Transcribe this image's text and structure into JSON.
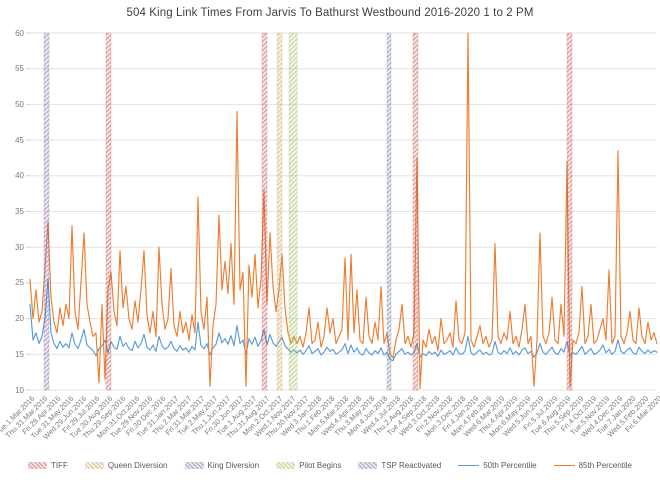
{
  "chart_data": {
    "type": "line",
    "title": "504 King Link Times From Jarvis To Bathurst Westbound 2016-2020 1 to 2 PM",
    "xlabel": "",
    "ylabel": "",
    "ylim": [
      10,
      60
    ],
    "y_ticks": [
      10,
      15,
      20,
      25,
      30,
      35,
      40,
      45,
      50,
      55,
      60
    ],
    "grid": true,
    "legend_position": "bottom",
    "categories": [
      "Tue.1.Mar.2016",
      "Thu.31.Mar.2016",
      "Fri.29.Apr.2016",
      "Tue.31.May.2016",
      "Wed.29.Jun.2016",
      "Fri.29.Jul.2016",
      "Tue.30.Aug.2016",
      "Thu.29.Sep.2016",
      "Mon.31.Oct.2016",
      "Tue.29.Nov.2016",
      "Fri.30.Dec.2016",
      "Tue.31.Jan.2017",
      "Thu.2.Mar.2017",
      "Fri.31.Mar.2017",
      "Tue.2.May.2017",
      "Thu.1.Jun.2017",
      "Fri.30.Jun.2017",
      "Tue.1.Aug.2017",
      "Thu.31.Aug.2017",
      "Mon.2.Oct.2017",
      "Wed.1.Nov.2017",
      "Thu.30.Nov.2017",
      "Wed.3.Jan.2018",
      "Thu.1.Feb.2018",
      "Mon.5.Mar.2018",
      "Wed.4.Apr.2018",
      "Thu.3.May.2018",
      "Mon.4.Jun.2018",
      "Wed.4.Jul.2018",
      "Thu.2.Aug.2018",
      "Tue.4.Sep.2018",
      "Wed.3.Oct.2018",
      "Fri.2.Nov.2018",
      "Mon.3.Dec.2018",
      "Fri.4.Jan.2019",
      "Mon.4.Feb.2019",
      "Wed.6.Mar.2019",
      "Thu.4.Apr.2019",
      "Mon.6.May.2019",
      "Wed.5.Jun.2019",
      "Fri.5.Jul.2019",
      "Tue.6.Aug.2019",
      "Thu.5.Sep.2019",
      "Fri.4.Oct.2019",
      "Tue.5.Nov.2019",
      "Wed.4.Dec.2019",
      "Tue.7.Jan.2020",
      "Wed.5.Feb.2020",
      "Fri.6.Mar.2020"
    ],
    "series": [
      {
        "name": "50th Percentile",
        "color": "#5B9BD5",
        "values": [
          22.0,
          17.0,
          18.0,
          16.5,
          17.5,
          20.0,
          25.5,
          18.0,
          16.5,
          15.8,
          16.8,
          16.0,
          16.5,
          15.9,
          18.0,
          16.4,
          15.8,
          17.0,
          18.5,
          16.3,
          15.9,
          15.5,
          14.8,
          15.8,
          16.2,
          17.0,
          15.2,
          16.8,
          16.0,
          15.7,
          17.5,
          16.1,
          16.6,
          15.8,
          15.5,
          16.8,
          15.9,
          16.5,
          17.8,
          16.0,
          15.6,
          16.3,
          15.4,
          17.5,
          16.2,
          15.7,
          16.0,
          16.8,
          15.8,
          15.4,
          16.2,
          15.6,
          15.9,
          15.3,
          16.1,
          15.6,
          19.5,
          16.2,
          15.8,
          16.5,
          14.9,
          15.9,
          16.4,
          18.0,
          16.6,
          17.2,
          16.4,
          17.6,
          16.2,
          19.0,
          16.5,
          17.0,
          15.0,
          17.2,
          16.4,
          17.4,
          16.1,
          16.9,
          18.5,
          16.3,
          17.8,
          16.6,
          16.1,
          16.8,
          17.4,
          16.2,
          15.7,
          15.3,
          15.6,
          15.2,
          15.6,
          15.0,
          15.5,
          16.2,
          15.1,
          15.4,
          15.8,
          14.9,
          15.3,
          16.0,
          15.4,
          15.7,
          15.0,
          15.3,
          15.6,
          16.5,
          15.1,
          16.3,
          15.3,
          15.9,
          15.1,
          14.9,
          15.8,
          15.2,
          14.9,
          15.5,
          15.1,
          15.9,
          14.9,
          15.3,
          14.3,
          14.1,
          15.0,
          15.4,
          15.8,
          15.0,
          15.3,
          14.9,
          15.2,
          16.5,
          14.6,
          15.1,
          14.8,
          15.4,
          15.0,
          15.3,
          14.7,
          15.6,
          15.0,
          15.2,
          15.5,
          14.9,
          15.9,
          15.1,
          15.0,
          15.4,
          17.5,
          15.2,
          14.9,
          15.3,
          15.6,
          15.0,
          15.3,
          14.9,
          15.1,
          16.8,
          15.3,
          15.0,
          15.5,
          15.1,
          15.9,
          15.0,
          15.4,
          14.9,
          15.6,
          15.9,
          15.1,
          15.4,
          14.6,
          15.2,
          16.5,
          15.3,
          15.0,
          15.5,
          16.0,
          15.2,
          15.0,
          15.8,
          15.3,
          16.8,
          14.7,
          15.2,
          15.0,
          15.5,
          16.1,
          15.0,
          15.4,
          15.8,
          15.0,
          15.2,
          15.6,
          16.3,
          15.2,
          15.7,
          15.0,
          15.4,
          17.0,
          15.4,
          15.1,
          15.6,
          15.9,
          15.2,
          15.0,
          16.0,
          15.4,
          15.1,
          15.6,
          15.2,
          15.5,
          15.3
        ]
      },
      {
        "name": "85th Percentile",
        "color": "#ED7D31",
        "values": [
          25.5,
          20.0,
          24.0,
          19.5,
          21.0,
          27.0,
          33.5,
          23.0,
          19.5,
          18.0,
          21.5,
          19.0,
          22.0,
          20.0,
          33.0,
          21.0,
          18.5,
          25.0,
          32.0,
          22.0,
          19.5,
          17.5,
          18.0,
          11.0,
          22.0,
          11.5,
          24.0,
          26.5,
          21.0,
          19.0,
          29.5,
          21.5,
          24.5,
          20.0,
          18.5,
          22.5,
          19.5,
          24.0,
          29.5,
          20.5,
          18.0,
          21.0,
          17.5,
          30.0,
          22.0,
          18.5,
          20.0,
          27.0,
          19.0,
          17.5,
          21.0,
          18.0,
          19.5,
          17.0,
          20.5,
          18.0,
          37.0,
          21.0,
          18.5,
          23.0,
          10.5,
          19.0,
          22.0,
          34.5,
          24.0,
          28.0,
          23.5,
          30.5,
          22.0,
          49.0,
          24.0,
          26.5,
          10.5,
          27.5,
          23.0,
          29.0,
          21.5,
          25.5,
          38.0,
          22.0,
          32.0,
          24.5,
          21.0,
          24.0,
          29.0,
          21.5,
          18.0,
          16.5,
          17.5,
          16.5,
          17.5,
          16.0,
          18.0,
          21.5,
          16.5,
          17.0,
          19.5,
          16.0,
          17.5,
          21.5,
          18.0,
          20.0,
          16.5,
          17.5,
          18.5,
          28.5,
          17.0,
          29.0,
          18.0,
          24.0,
          17.0,
          16.5,
          23.0,
          17.5,
          16.5,
          19.5,
          17.0,
          24.5,
          16.5,
          18.0,
          15.0,
          14.5,
          17.0,
          18.5,
          22.0,
          16.5,
          17.5,
          16.0,
          18.0,
          42.5,
          10.2,
          17.0,
          16.0,
          18.5,
          16.5,
          17.5,
          15.5,
          20.0,
          16.5,
          17.0,
          18.0,
          16.0,
          22.5,
          17.0,
          16.5,
          18.0,
          60.0,
          17.0,
          16.0,
          17.5,
          19.0,
          16.5,
          17.5,
          16.0,
          17.0,
          30.5,
          17.5,
          16.5,
          18.0,
          17.0,
          21.0,
          16.5,
          17.5,
          16.0,
          18.5,
          22.0,
          16.5,
          17.5,
          10.5,
          17.0,
          32.0,
          17.5,
          16.5,
          18.0,
          23.0,
          17.0,
          16.5,
          22.0,
          17.5,
          42.0,
          10.4,
          17.0,
          16.5,
          18.0,
          24.5,
          16.5,
          17.5,
          22.0,
          16.5,
          17.0,
          18.5,
          20.0,
          17.0,
          26.8,
          16.5,
          17.5,
          43.5,
          17.5,
          16.5,
          18.0,
          21.0,
          17.0,
          16.5,
          21.5,
          17.5,
          16.5,
          19.5,
          17.0,
          18.0,
          16.5
        ]
      }
    ],
    "events": [
      {
        "label": "King Diversion",
        "color": "#8064a2",
        "x0": 0.0223,
        "x1": 0.0303
      },
      {
        "label": "TIFF",
        "color": "#c0504d",
        "x0": 0.1212,
        "x1": 0.1292
      },
      {
        "label": "TIFF",
        "color": "#c0504d",
        "x0": 0.37,
        "x1": 0.378
      },
      {
        "label": "Queen Diversion",
        "color": "#c9a25b",
        "x0": 0.394,
        "x1": 0.402
      },
      {
        "label": "Pilot Begins",
        "color": "#9bbb59",
        "x0": 0.413,
        "x1": 0.426
      },
      {
        "label": "TSP Reactivated",
        "color": "#64789b",
        "x0": 0.5694,
        "x1": 0.5758
      },
      {
        "label": "TIFF",
        "color": "#c0504d",
        "x0": 0.6108,
        "x1": 0.6188
      },
      {
        "label": "TIFF",
        "color": "#c0504d",
        "x0": 0.8565,
        "x1": 0.8645
      }
    ],
    "legend": [
      {
        "label": "TIFF",
        "swatch": "band",
        "color": "#c0504d"
      },
      {
        "label": "Queen Diversion",
        "swatch": "band",
        "color": "#c9a25b"
      },
      {
        "label": "King Diversion",
        "swatch": "band",
        "color": "#8064a2"
      },
      {
        "label": "Pilot Begins",
        "swatch": "band",
        "color": "#9bbb59"
      },
      {
        "label": "TSP Reactivated",
        "swatch": "band",
        "color": "#64789b"
      },
      {
        "label": "50th Percentile",
        "swatch": "line",
        "color": "#5B9BD5"
      },
      {
        "label": "85th Percentile",
        "swatch": "line",
        "color": "#ED7D31"
      }
    ],
    "grid_color": "#e3e3e3",
    "text_color": "#7a7a7a",
    "title_color": "#3f3f3f"
  }
}
